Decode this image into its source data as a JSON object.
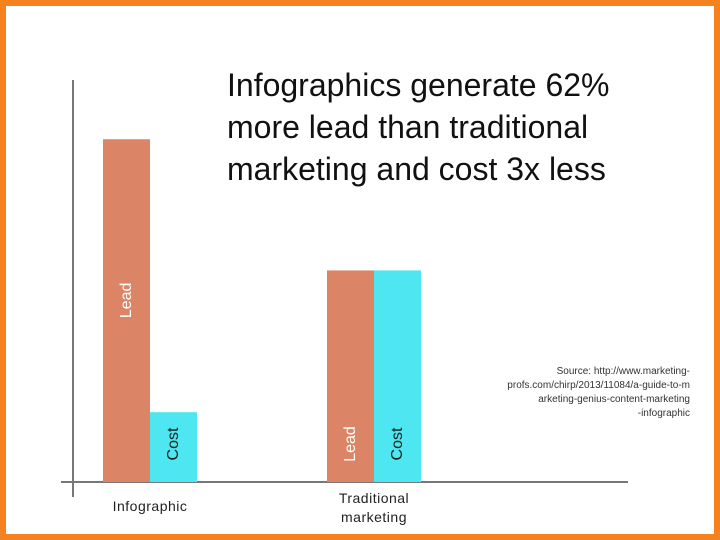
{
  "colors": {
    "frame": "#f5821f",
    "lead": "#db8466",
    "cost": "#4ee6f0",
    "lead_text": "#ffffff",
    "cost_text": "#1a1a1a",
    "axis": "#777777"
  },
  "chart_data": {
    "type": "bar",
    "title": "Infographics generate 62%\nmore lead than traditional\nmarketing and cost 3x less",
    "source": "Source: http://www.marketing-\nprofs.com/chirp/2013/11084/a-guide-to-m\narketing-genius-content-marketing\n-infographic",
    "categories": [
      "Infographic",
      "Traditional\nmarketing"
    ],
    "series": [
      {
        "name": "Lead",
        "values": [
          162,
          100
        ]
      },
      {
        "name": "Cost",
        "values": [
          33,
          100
        ]
      }
    ],
    "bar_labels": [
      [
        "Lead",
        "Cost"
      ],
      [
        "Lead",
        "Cost"
      ]
    ],
    "ylim": [
      0,
      190
    ],
    "grid": false,
    "legend": "none",
    "xlabel": "",
    "ylabel": ""
  }
}
